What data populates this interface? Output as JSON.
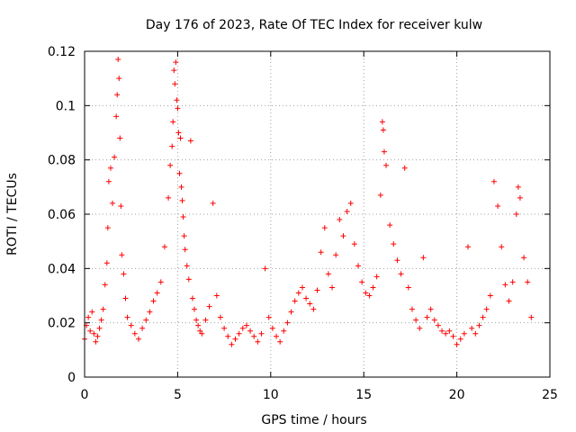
{
  "chart_data": {
    "type": "scatter",
    "title": "Day 176 of 2023, Rate Of TEC Index for receiver kulw",
    "xlabel": "GPS time / hours",
    "ylabel": "ROTI / TECUs",
    "xlim": [
      0,
      25
    ],
    "ylim": [
      0,
      0.12
    ],
    "x_ticks": [
      0,
      5,
      10,
      15,
      20,
      25
    ],
    "x_tick_labels": [
      "0",
      "5",
      "10",
      "15",
      "20",
      "25"
    ],
    "y_ticks": [
      0,
      0.02,
      0.04,
      0.06,
      0.08,
      0.1,
      0.12
    ],
    "y_tick_labels": [
      "0",
      "0.02",
      "0.04",
      "0.06",
      "0.08",
      "0.1",
      "0.12"
    ],
    "grid": true,
    "marker": "+",
    "series": [
      {
        "name": "ROTI",
        "color": "#ff0000",
        "x": [
          0.0,
          0.1,
          0.2,
          0.3,
          0.4,
          0.5,
          0.6,
          0.7,
          0.8,
          0.9,
          1.0,
          1.1,
          1.2,
          1.25,
          1.3,
          1.4,
          1.5,
          1.6,
          1.7,
          1.75,
          1.8,
          1.85,
          1.9,
          1.95,
          2.0,
          2.1,
          2.2,
          2.3,
          2.5,
          2.7,
          2.9,
          3.1,
          3.3,
          3.5,
          3.7,
          3.9,
          4.1,
          4.3,
          4.5,
          4.6,
          4.7,
          4.75,
          4.8,
          4.85,
          4.9,
          4.95,
          5.0,
          5.05,
          5.1,
          5.15,
          5.2,
          5.25,
          5.3,
          5.35,
          5.4,
          5.5,
          5.6,
          5.7,
          5.8,
          5.9,
          6.0,
          6.1,
          6.2,
          6.3,
          6.5,
          6.7,
          6.9,
          7.1,
          7.3,
          7.5,
          7.7,
          7.9,
          8.1,
          8.3,
          8.5,
          8.7,
          8.9,
          9.1,
          9.3,
          9.5,
          9.7,
          9.9,
          10.1,
          10.3,
          10.5,
          10.7,
          10.9,
          11.1,
          11.3,
          11.5,
          11.7,
          11.9,
          12.1,
          12.3,
          12.5,
          12.7,
          12.9,
          13.1,
          13.3,
          13.5,
          13.7,
          13.9,
          14.1,
          14.3,
          14.5,
          14.7,
          14.9,
          15.1,
          15.3,
          15.5,
          15.7,
          15.9,
          16.0,
          16.05,
          16.1,
          16.2,
          16.4,
          16.6,
          16.8,
          17.0,
          17.2,
          17.4,
          17.6,
          17.8,
          18.0,
          18.2,
          18.4,
          18.6,
          18.8,
          19.0,
          19.2,
          19.4,
          19.6,
          19.8,
          20.0,
          20.2,
          20.4,
          20.6,
          20.8,
          21.0,
          21.2,
          21.4,
          21.6,
          21.8,
          22.0,
          22.2,
          22.4,
          22.6,
          22.8,
          23.0,
          23.2,
          23.3,
          23.4,
          23.6,
          23.8,
          24.0
        ],
        "y": [
          0.014,
          0.019,
          0.022,
          0.017,
          0.024,
          0.016,
          0.013,
          0.015,
          0.018,
          0.021,
          0.025,
          0.034,
          0.042,
          0.055,
          0.072,
          0.077,
          0.064,
          0.081,
          0.096,
          0.104,
          0.117,
          0.11,
          0.088,
          0.063,
          0.045,
          0.038,
          0.029,
          0.022,
          0.019,
          0.016,
          0.014,
          0.018,
          0.021,
          0.024,
          0.028,
          0.031,
          0.035,
          0.048,
          0.066,
          0.078,
          0.085,
          0.094,
          0.113,
          0.108,
          0.116,
          0.102,
          0.099,
          0.09,
          0.075,
          0.088,
          0.07,
          0.065,
          0.059,
          0.052,
          0.047,
          0.041,
          0.036,
          0.087,
          0.029,
          0.025,
          0.021,
          0.019,
          0.017,
          0.016,
          0.021,
          0.026,
          0.064,
          0.03,
          0.022,
          0.018,
          0.015,
          0.012,
          0.014,
          0.016,
          0.018,
          0.019,
          0.017,
          0.015,
          0.013,
          0.016,
          0.04,
          0.022,
          0.018,
          0.015,
          0.013,
          0.017,
          0.02,
          0.024,
          0.028,
          0.031,
          0.033,
          0.029,
          0.027,
          0.025,
          0.032,
          0.046,
          0.055,
          0.038,
          0.033,
          0.045,
          0.058,
          0.052,
          0.061,
          0.064,
          0.049,
          0.041,
          0.035,
          0.031,
          0.03,
          0.033,
          0.037,
          0.067,
          0.094,
          0.091,
          0.083,
          0.078,
          0.056,
          0.049,
          0.043,
          0.038,
          0.077,
          0.033,
          0.025,
          0.021,
          0.018,
          0.044,
          0.022,
          0.025,
          0.021,
          0.019,
          0.017,
          0.016,
          0.017,
          0.015,
          0.012,
          0.014,
          0.016,
          0.048,
          0.018,
          0.016,
          0.019,
          0.022,
          0.025,
          0.03,
          0.072,
          0.063,
          0.048,
          0.034,
          0.028,
          0.035,
          0.06,
          0.07,
          0.066,
          0.044,
          0.035,
          0.022
        ]
      }
    ]
  }
}
